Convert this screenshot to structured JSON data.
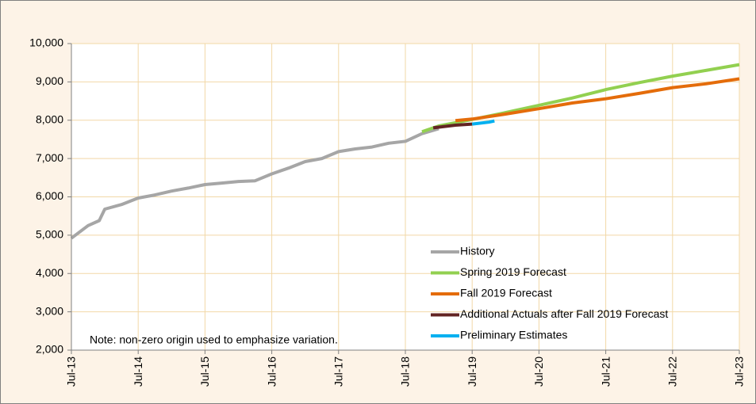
{
  "chart_data": {
    "type": "line",
    "note": "Note: non-zero origin used to emphasize variation.",
    "ylim": [
      2000,
      10000
    ],
    "yticks": [
      {
        "value": 2000,
        "label": "2,000"
      },
      {
        "value": 3000,
        "label": "3,000"
      },
      {
        "value": 4000,
        "label": "4,000"
      },
      {
        "value": 5000,
        "label": "5,000"
      },
      {
        "value": 6000,
        "label": "6,000"
      },
      {
        "value": 7000,
        "label": "7,000"
      },
      {
        "value": 8000,
        "label": "8,000"
      },
      {
        "value": 9000,
        "label": "9,000"
      },
      {
        "value": 10000,
        "label": "10,000"
      }
    ],
    "xlim": [
      "2013-07",
      "2023-07"
    ],
    "xticks": [
      {
        "value": "2013-07",
        "label": "Jul-13"
      },
      {
        "value": "2014-07",
        "label": "Jul-14"
      },
      {
        "value": "2015-07",
        "label": "Jul-15"
      },
      {
        "value": "2016-07",
        "label": "Jul-16"
      },
      {
        "value": "2017-07",
        "label": "Jul-17"
      },
      {
        "value": "2018-07",
        "label": "Jul-18"
      },
      {
        "value": "2019-07",
        "label": "Jul-19"
      },
      {
        "value": "2020-07",
        "label": "Jul-20"
      },
      {
        "value": "2021-07",
        "label": "Jul-21"
      },
      {
        "value": "2022-07",
        "label": "Jul-22"
      },
      {
        "value": "2023-07",
        "label": "Jul-23"
      }
    ],
    "grid": true,
    "legend": "lower right",
    "series": [
      {
        "name": "History",
        "color": "#a6a6a6",
        "x": [
          "2013-07",
          "2013-10",
          "2013-12",
          "2014-01",
          "2014-04",
          "2014-07",
          "2014-10",
          "2015-01",
          "2015-04",
          "2015-07",
          "2015-10",
          "2016-01",
          "2016-04",
          "2016-07",
          "2016-10",
          "2017-01",
          "2017-04",
          "2017-07",
          "2017-10",
          "2018-01",
          "2018-04",
          "2018-07",
          "2018-10",
          "2019-01"
        ],
        "values": [
          4920,
          5250,
          5380,
          5680,
          5800,
          5970,
          6050,
          6150,
          6230,
          6320,
          6360,
          6400,
          6420,
          6600,
          6750,
          6920,
          7000,
          7180,
          7250,
          7300,
          7400,
          7450,
          7650,
          7780
        ]
      },
      {
        "name": "Spring 2019 Forecast",
        "color": "#92d050",
        "x": [
          "2018-10",
          "2019-01",
          "2019-07",
          "2020-01",
          "2020-07",
          "2021-01",
          "2021-07",
          "2022-01",
          "2022-07",
          "2023-01",
          "2023-07"
        ],
        "values": [
          7700,
          7850,
          8020,
          8200,
          8390,
          8580,
          8800,
          8980,
          9150,
          9300,
          9450
        ]
      },
      {
        "name": "Fall 2019 Forecast",
        "color": "#e46c0a",
        "x": [
          "2019-04",
          "2019-07",
          "2020-01",
          "2020-07",
          "2021-01",
          "2021-07",
          "2022-01",
          "2022-07",
          "2023-01",
          "2023-07"
        ],
        "values": [
          7990,
          8030,
          8160,
          8300,
          8450,
          8560,
          8700,
          8850,
          8950,
          9080
        ]
      },
      {
        "name": "Additional Actuals after Fall 2019 Forecast",
        "color": "#632423",
        "x": [
          "2018-12",
          "2019-04",
          "2019-07"
        ],
        "values": [
          7800,
          7870,
          7900
        ]
      },
      {
        "name": "Preliminary Estimates",
        "color": "#00b0f0",
        "x": [
          "2019-07",
          "2019-10",
          "2019-11"
        ],
        "values": [
          7900,
          7950,
          7980
        ]
      }
    ]
  }
}
